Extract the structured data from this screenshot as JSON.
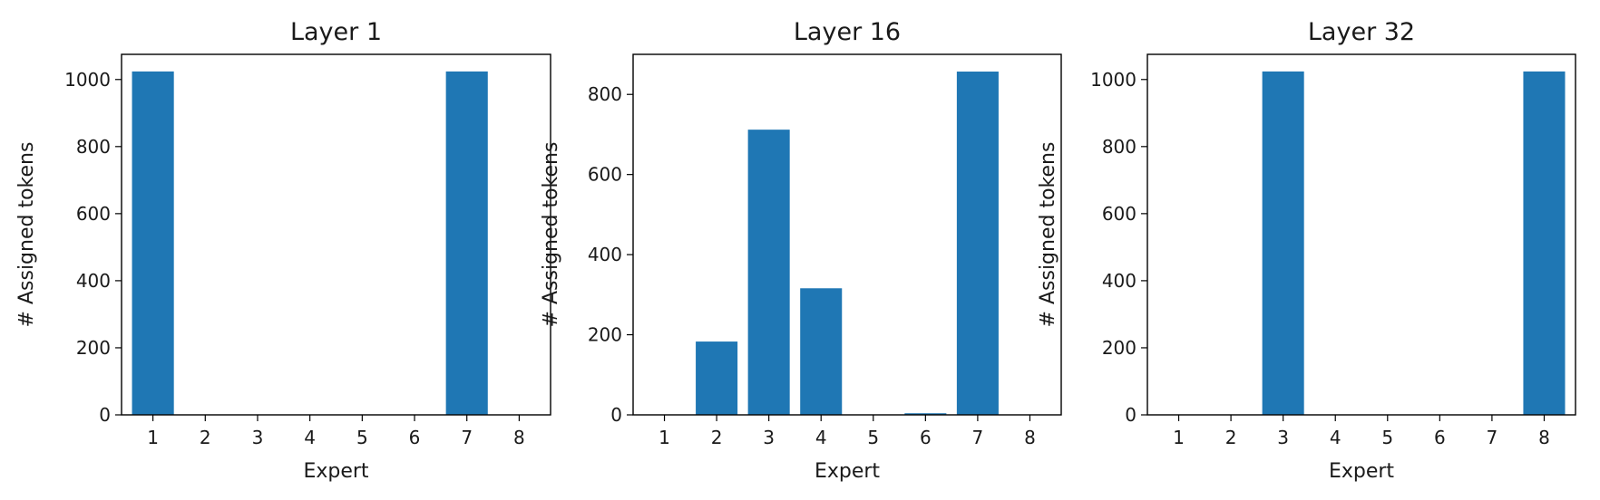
{
  "chart_data": [
    {
      "type": "bar",
      "title": "Layer 1",
      "xlabel": "Expert",
      "ylabel": "# Assigned tokens",
      "categories": [
        "1",
        "2",
        "3",
        "4",
        "5",
        "6",
        "7",
        "8"
      ],
      "values": [
        1024,
        0,
        0,
        0,
        0,
        0,
        1024,
        0
      ],
      "ylim": [
        0,
        1075
      ],
      "yticks": [
        0,
        200,
        400,
        600,
        800,
        1000
      ],
      "bar_color": "#1f77b4",
      "grid": false
    },
    {
      "type": "bar",
      "title": "Layer 16",
      "xlabel": "Expert",
      "ylabel": "# Assigned tokens",
      "categories": [
        "1",
        "2",
        "3",
        "4",
        "5",
        "6",
        "7",
        "8"
      ],
      "values": [
        0,
        183,
        712,
        316,
        0,
        4,
        857,
        0
      ],
      "ylim": [
        0,
        900
      ],
      "yticks": [
        0,
        200,
        400,
        600,
        800
      ],
      "bar_color": "#1f77b4",
      "grid": false
    },
    {
      "type": "bar",
      "title": "Layer 32",
      "xlabel": "Expert",
      "ylabel": "# Assigned tokens",
      "categories": [
        "1",
        "2",
        "3",
        "4",
        "5",
        "6",
        "7",
        "8"
      ],
      "values": [
        0,
        0,
        1024,
        0,
        0,
        0,
        0,
        1024
      ],
      "ylim": [
        0,
        1075
      ],
      "yticks": [
        0,
        200,
        400,
        600,
        800,
        1000
      ],
      "bar_color": "#1f77b4",
      "grid": false
    }
  ]
}
